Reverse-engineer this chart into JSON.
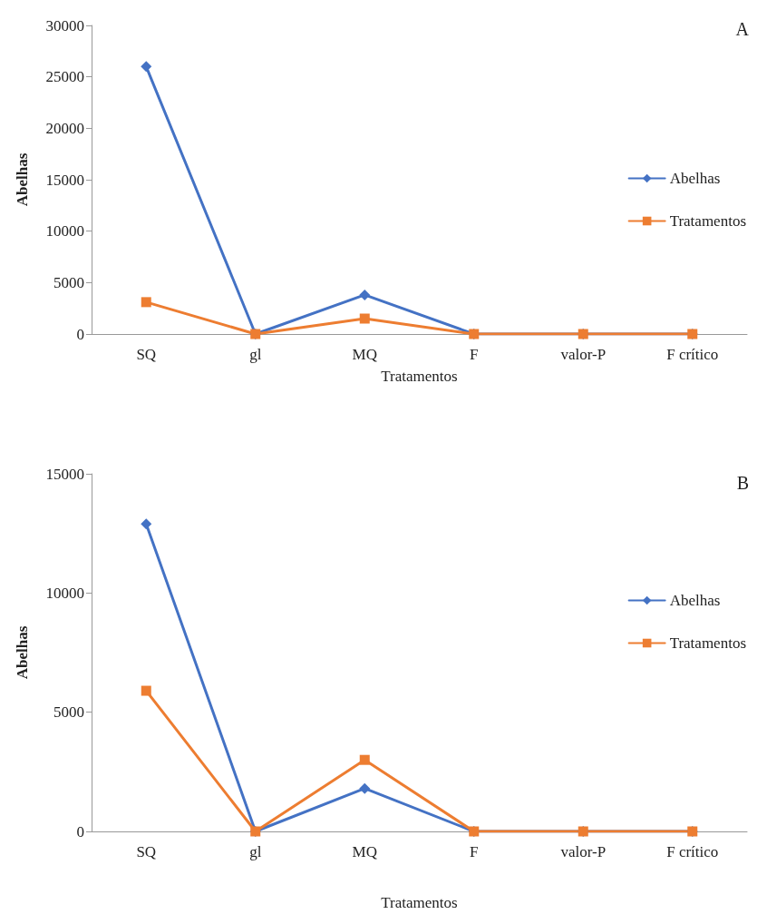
{
  "chart_data": [
    {
      "type": "line",
      "xlabel": "Tratamentos",
      "ylabel": "Abelhas",
      "annotations": [
        "A"
      ],
      "categories": [
        "SQ",
        "gl",
        "MQ",
        "F",
        "valor-P",
        "F crítico"
      ],
      "series": [
        {
          "name": "Abelhas",
          "color": "#4472c4",
          "marker": "diamond",
          "values": [
            26000,
            0,
            3800,
            0,
            0,
            0
          ]
        },
        {
          "name": "Tratamentos",
          "color": "#ed7d31",
          "marker": "square",
          "values": [
            3100,
            0,
            1500,
            0,
            0,
            0
          ]
        }
      ],
      "ylim": [
        0,
        30000
      ],
      "yticks": [
        0,
        5000,
        10000,
        15000,
        20000,
        25000,
        30000
      ],
      "grid": false,
      "legend": "right",
      "line_style": "solid"
    },
    {
      "type": "line",
      "xlabel": "Tratamentos",
      "ylabel": "Abelhas",
      "annotations": [
        "B"
      ],
      "categories": [
        "SQ",
        "gl",
        "MQ",
        "F",
        "valor-P",
        "F crítico"
      ],
      "series": [
        {
          "name": "Abelhas",
          "color": "#4472c4",
          "marker": "diamond",
          "values": [
            12900,
            0,
            1800,
            0,
            0,
            0
          ]
        },
        {
          "name": "Tratamentos",
          "color": "#ed7d31",
          "marker": "square",
          "values": [
            5900,
            0,
            3000,
            0,
            0,
            0
          ]
        }
      ],
      "ylim": [
        0,
        15000
      ],
      "yticks": [
        0,
        5000,
        10000,
        15000
      ],
      "grid": false,
      "legend": "right",
      "line_style": "solid"
    }
  ]
}
